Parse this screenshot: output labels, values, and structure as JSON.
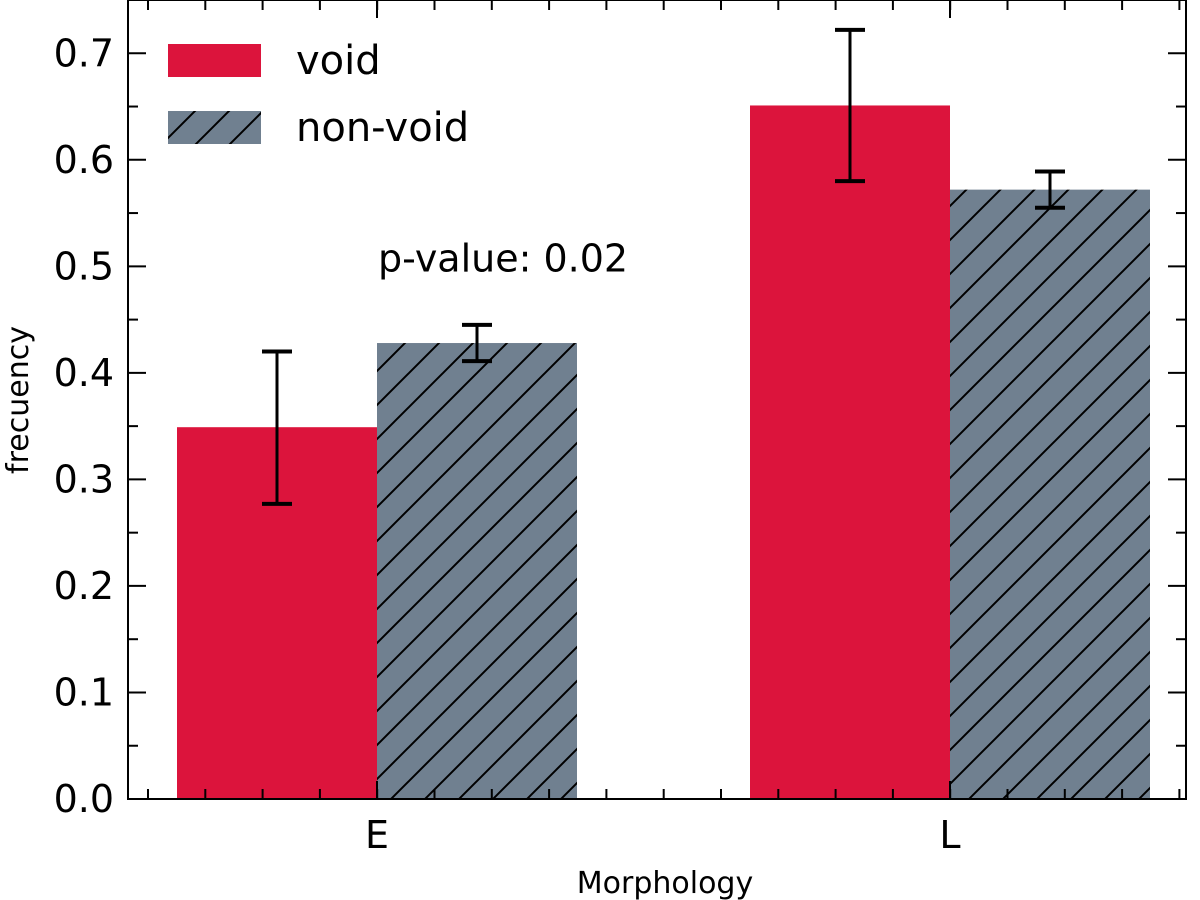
{
  "chart_data": {
    "type": "bar",
    "title": "",
    "xlabel": "Morphology",
    "ylabel": "frecuency",
    "categories": [
      "E",
      "L"
    ],
    "ylim": [
      0.0,
      0.75
    ],
    "yticks": [
      "0.0",
      "0.1",
      "0.2",
      "0.3",
      "0.4",
      "0.5",
      "0.6",
      "0.7"
    ],
    "grid": false,
    "legend_position": "top-left",
    "series": [
      {
        "name": "void",
        "color": "#dc143c",
        "hatch": "none",
        "values": [
          0.349,
          0.651
        ],
        "err_low": [
          0.277,
          0.58
        ],
        "err_high": [
          0.42,
          0.722
        ]
      },
      {
        "name": "non-void",
        "color": "#708090",
        "hatch": "diagonal",
        "values": [
          0.428,
          0.572
        ],
        "err_low": [
          0.411,
          0.555
        ],
        "err_high": [
          0.445,
          0.589
        ]
      }
    ],
    "annotations": [
      {
        "text": "p-value: 0.02",
        "x": "E",
        "y": 0.5
      }
    ]
  }
}
